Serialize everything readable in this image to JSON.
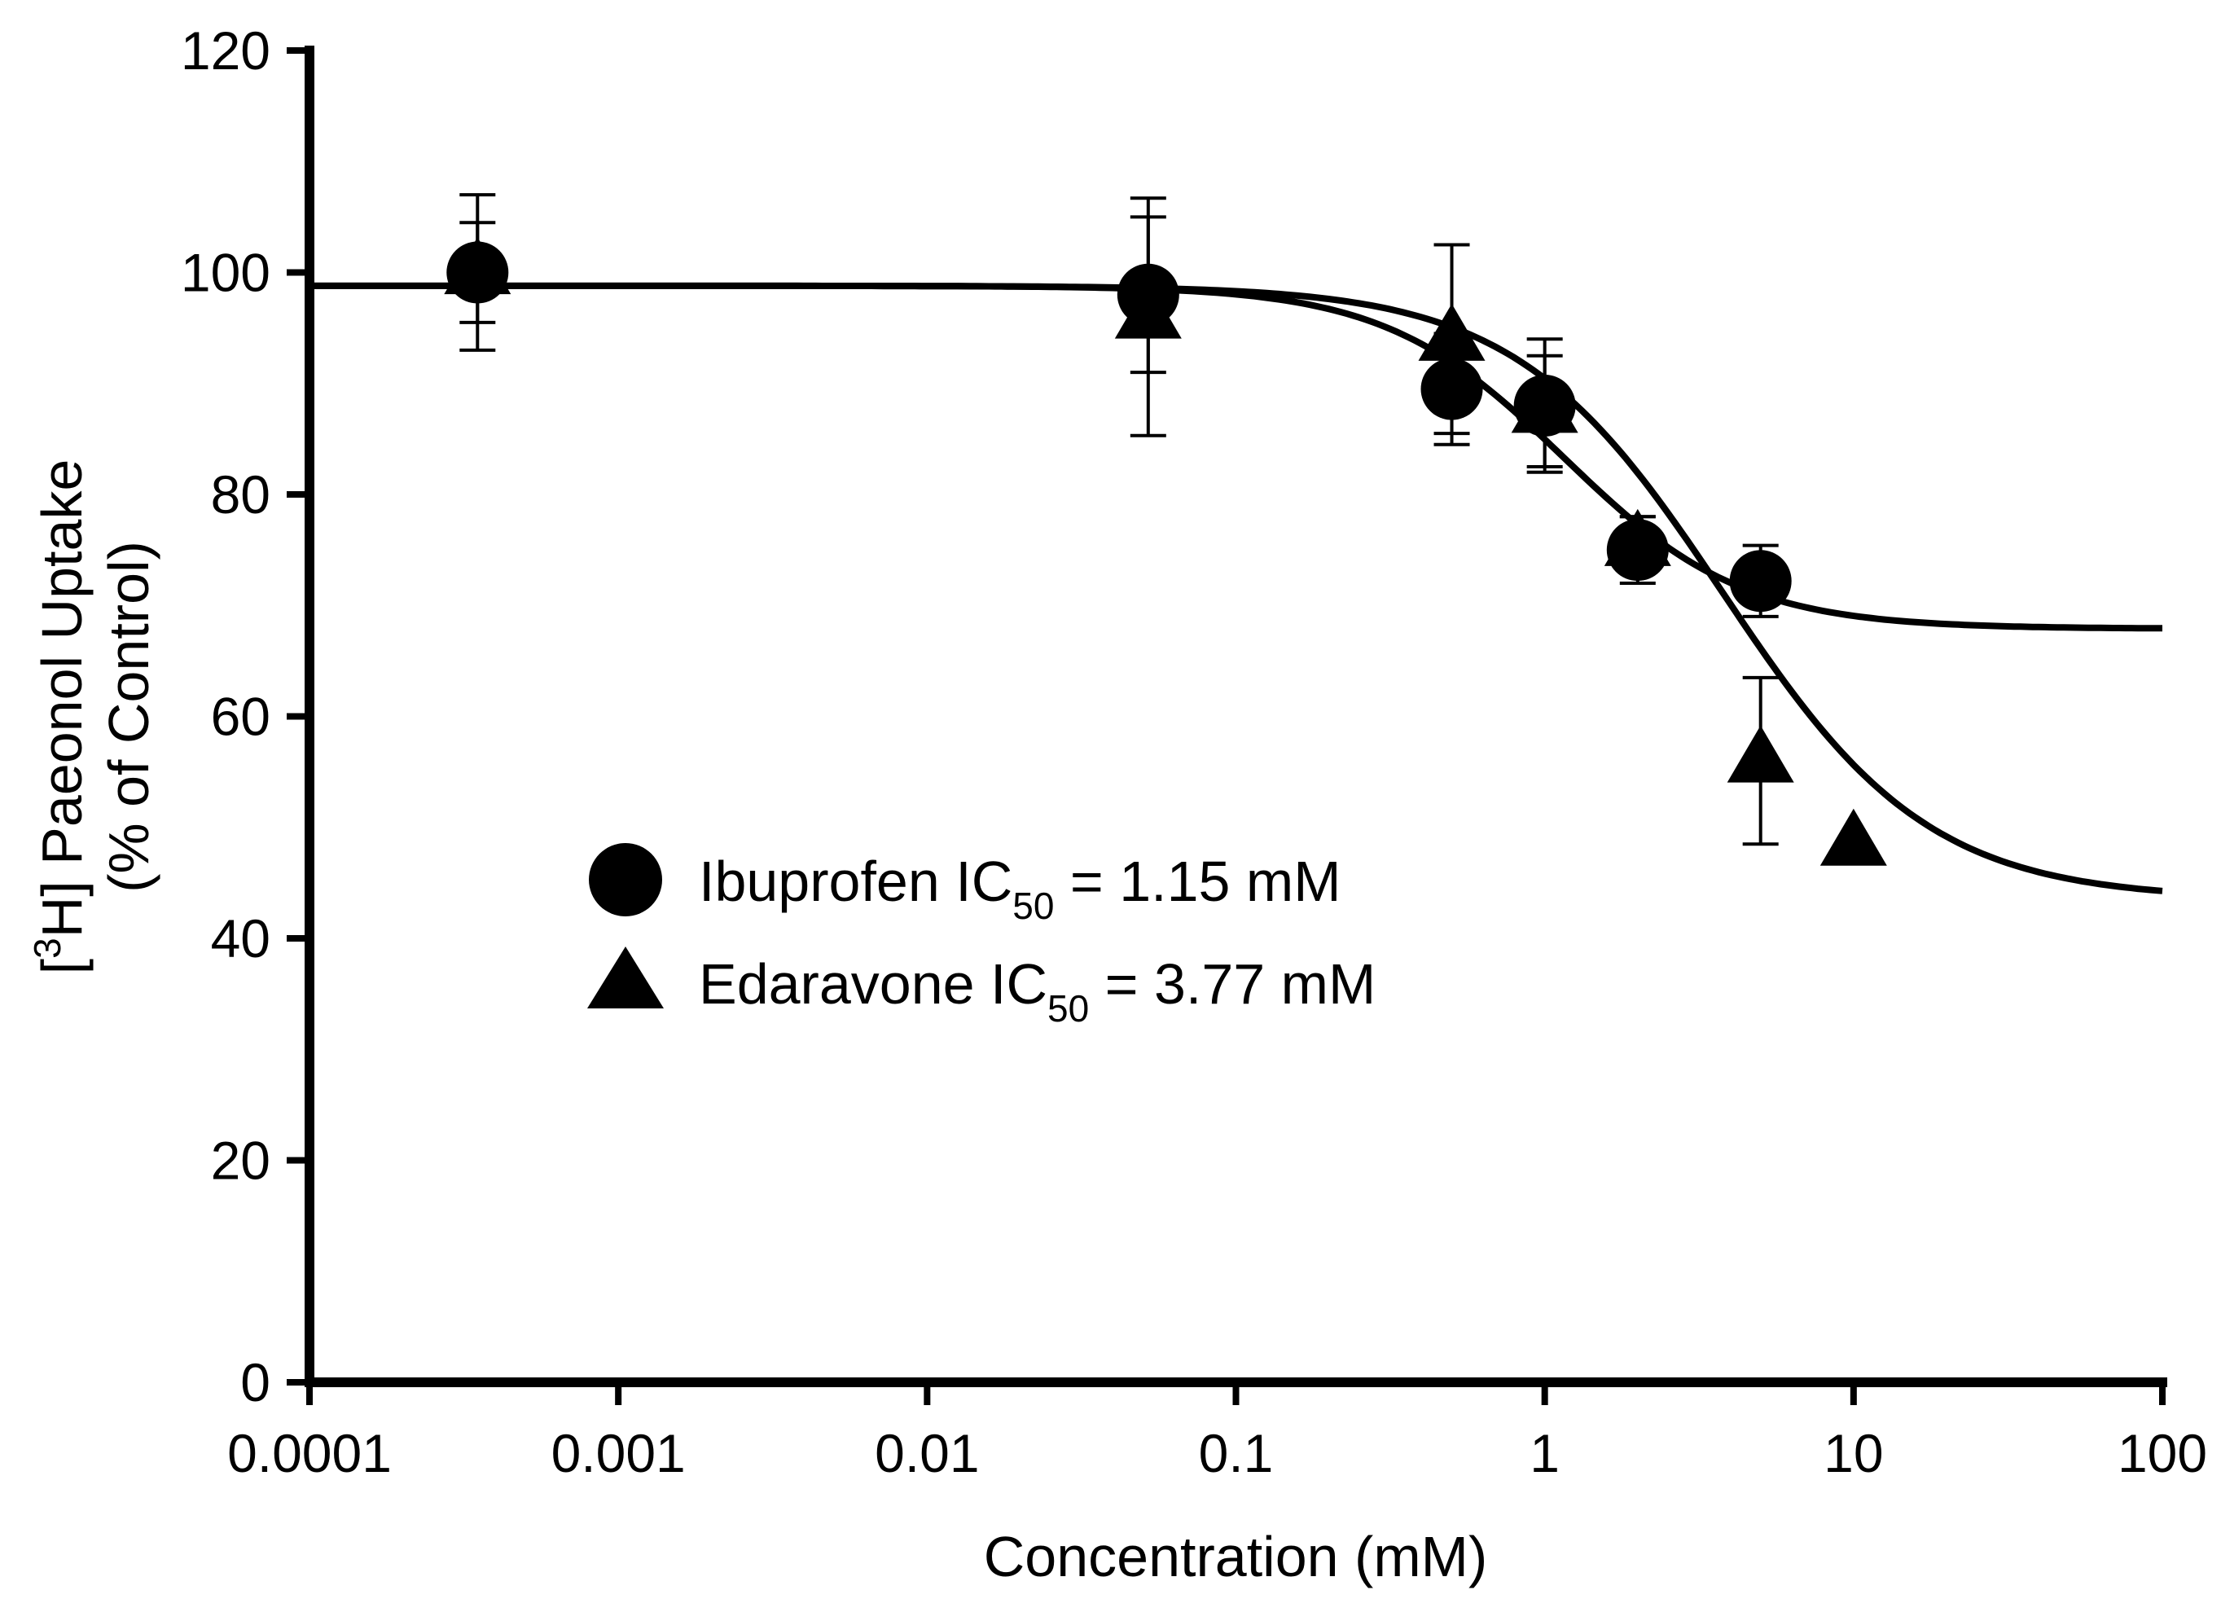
{
  "chart_data": {
    "type": "scatter",
    "xscale": "log",
    "xlim": [
      0.0001,
      100
    ],
    "ylim": [
      0,
      120
    ],
    "x_ticks": [
      "0.0001",
      "0.001",
      "0.01",
      "0.1",
      "1",
      "10",
      "100"
    ],
    "y_ticks": [
      "0",
      "20",
      "40",
      "60",
      "80",
      "100",
      "120"
    ],
    "ylabel_line1_prefix": "[",
    "ylabel_line1_sup": "3",
    "ylabel_line1_rest": "H] Paeonol Uptake",
    "ylabel_line2": "(% of Control)",
    "xlabel": "Concentration (mM)",
    "series": [
      {
        "name": "Ibuprofen",
        "marker": "circle",
        "legend_prefix": "Ibuprofen IC",
        "legend_sub": "50",
        "legend_suffix": " = 1.15 mM",
        "ic50_mM": 1.15,
        "fit_top": 98.8,
        "fit_bottom": 67.9,
        "fit_hill": 1.5,
        "points": [
          {
            "x": 0.00035,
            "y": 100,
            "err": 4.5
          },
          {
            "x": 0.052,
            "y": 98,
            "err": 7
          },
          {
            "x": 0.5,
            "y": 89.5,
            "err": 5
          },
          {
            "x": 1.0,
            "y": 88,
            "err": 6
          },
          {
            "x": 2.0,
            "y": 75,
            "err": 3
          },
          {
            "x": 5.0,
            "y": 72.2,
            "err": 3.2
          }
        ]
      },
      {
        "name": "Edaravone",
        "marker": "triangle",
        "legend_prefix": "Edaravone IC",
        "legend_sub": "50",
        "legend_suffix": " = 3.77 mM",
        "ic50_mM": 3.77,
        "fit_top": 98.8,
        "fit_bottom": 43.5,
        "fit_hill": 1.3,
        "points": [
          {
            "x": 0.00035,
            "y": 100,
            "err": 7
          },
          {
            "x": 0.052,
            "y": 96,
            "err": 10.7
          },
          {
            "x": 0.5,
            "y": 94,
            "err": 8.5
          },
          {
            "x": 1.0,
            "y": 87.5,
            "err": 5
          },
          {
            "x": 2.0,
            "y": 75.5,
            "err": 2.5
          },
          {
            "x": 5.0,
            "y": 56,
            "err": 7.5
          },
          {
            "x": 10.0,
            "y": 48.5,
            "err": 0
          }
        ]
      }
    ],
    "legend_placement": "center-left"
  }
}
